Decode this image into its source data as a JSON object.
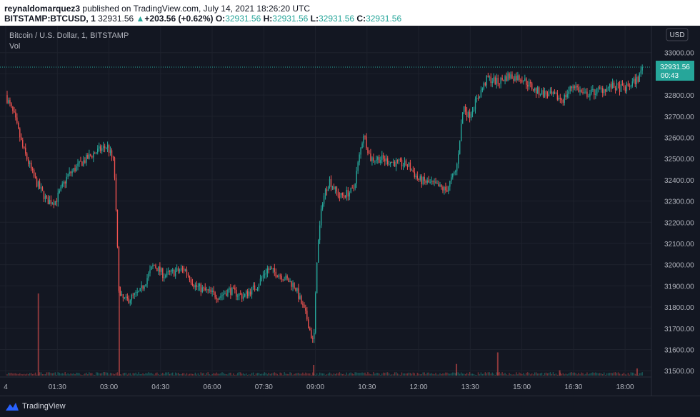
{
  "header": {
    "author": "reynaldomarquez3",
    "published": "published on TradingView.com, July 14, 2021 18:26:20 UTC",
    "symbol": "BITSTAMP:BTCUSD, 1",
    "last": "32931.56",
    "change_arrow": "▲",
    "change": "+203.56 (+0.62%)",
    "o_label": "O:",
    "o_value": "32931.56",
    "h_label": "H:",
    "h_value": "32931.56",
    "l_label": "L:",
    "l_value": "32931.56",
    "c_label": "C:",
    "c_value": "32931.56"
  },
  "legend": {
    "title": "Bitcoin / U.S. Dollar, 1, BITSTAMP",
    "vol": "Vol"
  },
  "currency_button": "USD",
  "price_label": {
    "price": "32931.56",
    "countdown": "00:43"
  },
  "footer": {
    "brand": "TradingView",
    "brand_icon": "tradingview-logo-icon"
  },
  "colors": {
    "background": "#131722",
    "grid": "#1e222d",
    "up": "#26a69a",
    "down": "#ef5350",
    "text": "#b2b5be"
  },
  "chart_data": {
    "type": "candlestick",
    "ylim": [
      31450,
      33100
    ],
    "y_ticks": [
      31500,
      31600,
      31700,
      31800,
      31900,
      32000,
      32100,
      32200,
      32300,
      32400,
      32500,
      32600,
      32700,
      32800,
      32900,
      33000
    ],
    "y_tick_labels": [
      "31500.00",
      "31600.00",
      "31700.00",
      "31800.00",
      "31900.00",
      "32000.00",
      "32100.00",
      "32200.00",
      "32300.00",
      "32400.00",
      "32500.00",
      "32600.00",
      "32700.00",
      "32800.00",
      "32900.00",
      "33000.00"
    ],
    "x_tick_labels": [
      "4",
      "01:30",
      "03:00",
      "04:30",
      "06:00",
      "07:30",
      "09:00",
      "10:30",
      "12:00",
      "13:30",
      "15:00",
      "16:30",
      "18:00"
    ],
    "x_tick_hours": [
      0,
      1.5,
      3,
      4.5,
      6,
      7.5,
      9,
      10.5,
      12,
      13.5,
      15,
      16.5,
      18
    ],
    "x_range_hours": [
      0,
      18.6
    ],
    "last_price": 32931.56,
    "price_path": {
      "hours": [
        0,
        0.25,
        0.5,
        0.85,
        1.2,
        1.45,
        1.8,
        2.2,
        2.6,
        2.95,
        3.15,
        3.3,
        3.5,
        3.9,
        4.3,
        4.6,
        5.2,
        5.5,
        5.9,
        6.2,
        6.5,
        6.9,
        7.3,
        7.6,
        8.0,
        8.4,
        8.75,
        8.95,
        9.05,
        9.2,
        9.4,
        9.7,
        10.1,
        10.4,
        10.6,
        10.9,
        11.3,
        11.7,
        12.0,
        12.4,
        12.8,
        13.1,
        13.3,
        13.45,
        13.7,
        14.0,
        14.3,
        14.6,
        15.0,
        15.4,
        15.8,
        16.2,
        16.5,
        16.8,
        17.2,
        17.6,
        18.0,
        18.4,
        18.5
      ],
      "prices": [
        32800,
        32700,
        32550,
        32400,
        32300,
        32300,
        32420,
        32480,
        32530,
        32560,
        32480,
        31850,
        31830,
        31870,
        32000,
        31950,
        31980,
        31900,
        31870,
        31850,
        31880,
        31850,
        31900,
        31980,
        31950,
        31900,
        31750,
        31620,
        32050,
        32300,
        32400,
        32320,
        32350,
        32620,
        32500,
        32500,
        32480,
        32470,
        32400,
        32380,
        32350,
        32450,
        32750,
        32700,
        32780,
        32880,
        32860,
        32890,
        32880,
        32820,
        32800,
        32780,
        32850,
        32800,
        32820,
        32840,
        32830,
        32880,
        32931.56
      ]
    },
    "volume_spikes": [
      {
        "hour": 0.95,
        "relative": 0.92
      },
      {
        "hour": 3.3,
        "relative": 1.0
      },
      {
        "hour": 8.95,
        "relative": 0.12
      },
      {
        "hour": 13.1,
        "relative": 0.13
      },
      {
        "hour": 14.3,
        "relative": 0.26
      },
      {
        "hour": 16.1,
        "relative": 0.06
      },
      {
        "hour": 18.35,
        "relative": 0.08
      }
    ]
  }
}
